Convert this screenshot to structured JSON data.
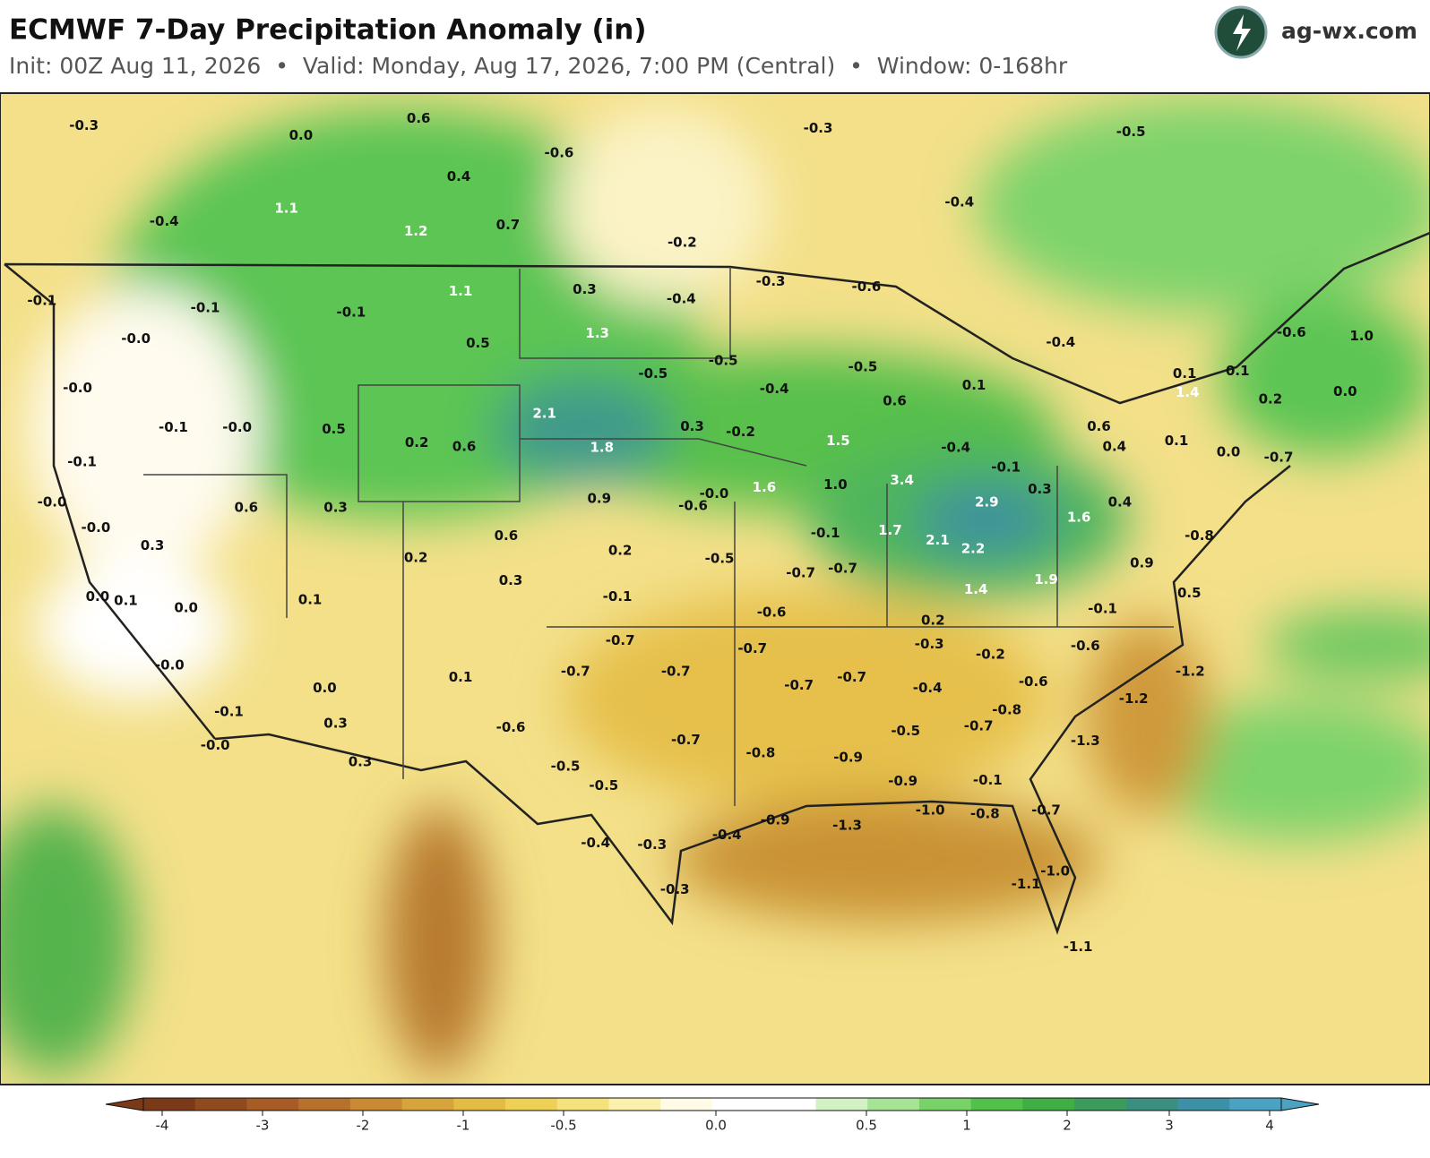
{
  "header": {
    "title": "ECMWF 7-Day Precipitation Anomaly (in)",
    "subtitle": "Init: 00Z Aug 11, 2026  •  Valid: Monday, Aug 17, 2026, 7:00 PM (Central)  •  Window: 0-168hr",
    "brand": "ag-wx.com"
  },
  "map": {
    "labels": [
      "-0.3",
      "0.0",
      "0.6",
      "-0.6",
      "-0.3",
      "-0.5",
      "0.4",
      "1.1",
      "-0.4",
      "1.2",
      "0.7",
      "-0.2",
      "-0.4",
      "-0.1",
      "-0.1",
      "-0.1",
      "1.1",
      "0.3",
      "-0.4",
      "-0.3",
      "-0.6",
      "-0.0",
      "0.5",
      "1.3",
      "-0.5",
      "-0.5",
      "-0.5",
      "-0.4",
      "-0.6",
      "1.0",
      "-0.0",
      "-0.4",
      "0.6",
      "0.1",
      "0.1",
      "0.1",
      "1.4",
      "0.2",
      "0.0",
      "-0.1",
      "-0.0",
      "0.5",
      "2.1",
      "0.3",
      "-0.2",
      "1.5",
      "-0.4",
      "0.6",
      "0.2",
      "0.6",
      "1.8",
      "0.4",
      "0.1",
      "0.0",
      "-0.7",
      "-0.1",
      "-0.1",
      "-0.0",
      "0.6",
      "0.3",
      "0.9",
      "-0.6",
      "-0.0",
      "1.6",
      "1.0",
      "3.4",
      "2.9",
      "0.3",
      "0.4",
      "-0.0",
      "0.3",
      "0.6",
      "0.2",
      "-0.5",
      "-0.1",
      "1.7",
      "2.1",
      "2.2",
      "1.6",
      "-0.8",
      "0.2",
      "0.3",
      "-0.7",
      "-0.7",
      "0.9",
      "0.5",
      "0.0",
      "0.1",
      "0.0",
      "0.1",
      "-0.1",
      "-0.6",
      "1.4",
      "1.9",
      "-0.1",
      "0.2",
      "-0.0",
      "-0.7",
      "-0.7",
      "-0.7",
      "-0.7",
      "-0.3",
      "-0.2",
      "-0.6",
      "-1.2",
      "0.1",
      "0.0",
      "-0.7",
      "-0.7",
      "-0.4",
      "-0.6",
      "-0.1",
      "-0.8",
      "-1.2",
      "0.3",
      "-0.6",
      "-0.5",
      "-0.7",
      "-0.0",
      "-0.7",
      "-0.8",
      "-0.9",
      "-1.3",
      "0.3",
      "-0.5",
      "-0.5",
      "-0.9",
      "-0.1",
      "-0.8",
      "-1.0",
      "-0.7",
      "-0.9",
      "-1.3",
      "-0.4",
      "-0.4",
      "-0.3",
      "-1.0",
      "-1.1",
      "-0.3",
      "-1.1"
    ]
  },
  "colorbar": {
    "ticks": [
      -4,
      -3,
      -2,
      -1,
      -0.5,
      {
        "value": 0,
        "label": "0.0"
      },
      0.5,
      1,
      2,
      3,
      4
    ],
    "colors": [
      "#7a3a17",
      "#8f4a1d",
      "#a65c24",
      "#b8712b",
      "#c98a33",
      "#d7a33b",
      "#e3bb45",
      "#edd055",
      "#f5e27a",
      "#fbf0ad",
      "#fffbe6",
      "#ffffff",
      "#ffffff",
      "#d2f2c6",
      "#a6e495",
      "#78d268",
      "#52c14a",
      "#3fae44",
      "#3c9c5c",
      "#3b8f80",
      "#3d91a6",
      "#4aa3c2"
    ]
  }
}
